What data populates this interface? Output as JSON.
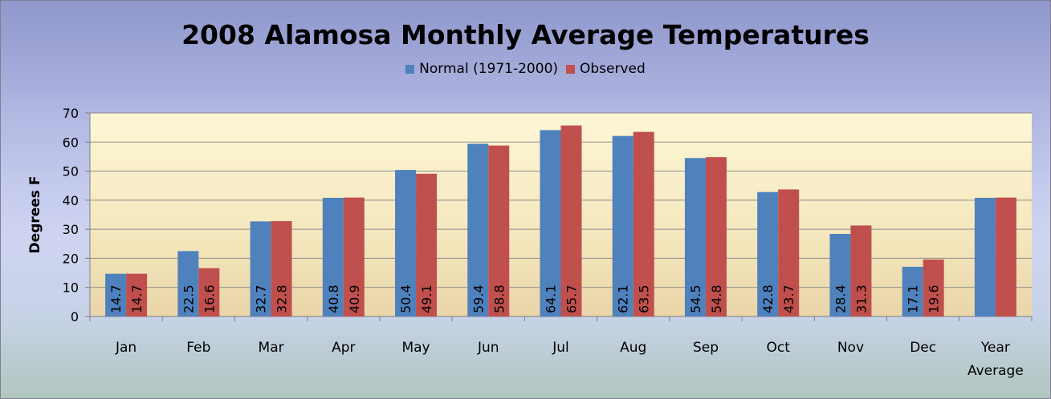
{
  "chart_data": {
    "type": "bar",
    "title": "2008 Alamosa Monthly Average Temperatures",
    "ylabel": "Degrees F",
    "xlabel": "",
    "ylim": [
      0,
      70
    ],
    "yticks": [
      0,
      10,
      20,
      30,
      40,
      50,
      60,
      70
    ],
    "grid": true,
    "legend_position": "top-center",
    "categories": [
      "Jan",
      "Feb",
      "Mar",
      "Apr",
      "May",
      "Jun",
      "Jul",
      "Aug",
      "Sep",
      "Oct",
      "Nov",
      "Dec",
      "Year Average"
    ],
    "series": [
      {
        "name": "Normal (1971-2000)",
        "color": "#4f81bd",
        "values": [
          14.7,
          22.5,
          32.7,
          40.8,
          50.4,
          59.4,
          64.1,
          62.1,
          54.5,
          42.8,
          28.4,
          17.1,
          40.8
        ],
        "labels": [
          "14.7",
          "22.5",
          "32.7",
          "40.8",
          "50.4",
          "59.4",
          "64.1",
          "62.1",
          "54.5",
          "42.8",
          "28.4",
          "17.1",
          ""
        ]
      },
      {
        "name": "Observed",
        "color": "#c0504d",
        "values": [
          14.7,
          16.6,
          32.8,
          40.9,
          49.1,
          58.8,
          65.7,
          63.5,
          54.8,
          43.7,
          31.3,
          19.6,
          40.9
        ],
        "labels": [
          "14.7",
          "16.6",
          "32.8",
          "40.9",
          "49.1",
          "58.8",
          "65.7",
          "63.5",
          "54.8",
          "43.7",
          "31.3",
          "19.6",
          ""
        ]
      }
    ]
  }
}
